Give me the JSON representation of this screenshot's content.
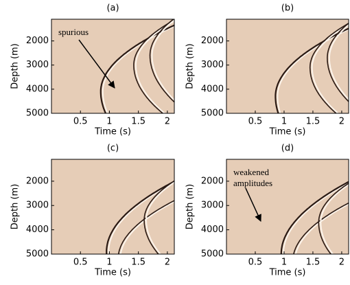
{
  "chart_data": [
    {
      "type": "image",
      "title": "(a)",
      "xlabel": "Time (s)",
      "ylabel": "Depth (m)",
      "xlim": [
        0,
        2.12
      ],
      "ylim": [
        5000,
        1100
      ],
      "xticks": [
        0.5,
        1,
        1.5,
        2
      ],
      "yticks": [
        2000,
        3000,
        4000,
        5000
      ],
      "annotation": [
        "spurious"
      ]
    },
    {
      "type": "image",
      "title": "(b)",
      "xlabel": "Time (s)",
      "ylabel": "Depth (m)",
      "xlim": [
        0,
        2.12
      ],
      "ylim": [
        5000,
        1100
      ],
      "xticks": [
        0.5,
        1,
        1.5,
        2
      ],
      "yticks": [
        2000,
        3000,
        4000,
        5000
      ]
    },
    {
      "type": "image",
      "title": "(c)",
      "xlabel": "Time (s)",
      "ylabel": "Depth (m)",
      "xlim": [
        0,
        2.12
      ],
      "ylim": [
        5000,
        1100
      ],
      "xticks": [
        0.5,
        1,
        1.5,
        2
      ],
      "yticks": [
        2000,
        3000,
        4000,
        5000
      ]
    },
    {
      "type": "image",
      "title": "(d)",
      "xlabel": "Time (s)",
      "ylabel": "Depth (m)",
      "xlim": [
        0,
        2.12
      ],
      "ylim": [
        5000,
        1100
      ],
      "xticks": [
        0.5,
        1,
        1.5,
        2
      ],
      "yticks": [
        2000,
        3000,
        4000,
        5000
      ],
      "annotation": [
        "weakened",
        "amplitudes"
      ]
    }
  ]
}
